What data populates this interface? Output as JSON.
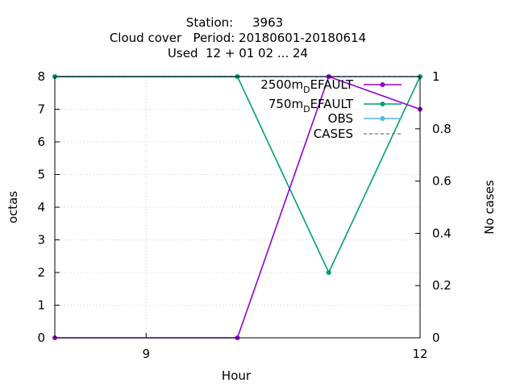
{
  "chart_data": {
    "type": "line",
    "title_lines": [
      "Station:     3963",
      "Cloud cover   Period: 20180601-20180614",
      "Used  12 + 01 02 ... 24"
    ],
    "xlabel": "Hour",
    "ylabel": "octas",
    "y2label": "No cases",
    "xlim": [
      8,
      12
    ],
    "ylim": [
      0,
      8
    ],
    "y2lim": [
      0,
      1
    ],
    "xticks": [
      {
        "value": 9,
        "label": "9"
      },
      {
        "value": 12,
        "label": "12"
      }
    ],
    "yticks": [
      {
        "value": 0,
        "label": "0"
      },
      {
        "value": 1,
        "label": "1"
      },
      {
        "value": 2,
        "label": "2"
      },
      {
        "value": 3,
        "label": "3"
      },
      {
        "value": 4,
        "label": "4"
      },
      {
        "value": 5,
        "label": "5"
      },
      {
        "value": 6,
        "label": "6"
      },
      {
        "value": 7,
        "label": "7"
      },
      {
        "value": 8,
        "label": "8"
      }
    ],
    "y2ticks": [
      {
        "value": 0,
        "label": "0"
      },
      {
        "value": 0.2,
        "label": "0.2"
      },
      {
        "value": 0.4,
        "label": "0.4"
      },
      {
        "value": 0.6,
        "label": "0.6"
      },
      {
        "value": 0.8,
        "label": "0.8"
      },
      {
        "value": 1,
        "label": "1"
      }
    ],
    "grid": true,
    "legend_position": "top-right",
    "series": [
      {
        "name": "2500m",
        "name_sub": "D",
        "name_rest": "EFAULT",
        "color": "#9400d3",
        "axis": "y",
        "dash": false,
        "x": [
          8,
          10,
          11,
          12
        ],
        "values": [
          0,
          0,
          8,
          7
        ]
      },
      {
        "name": "750m",
        "name_sub": "D",
        "name_rest": "EFAULT",
        "color": "#009e73",
        "axis": "y",
        "dash": false,
        "x": [
          8,
          10,
          11,
          12
        ],
        "values": [
          8,
          8,
          2,
          8
        ]
      },
      {
        "name": "OBS",
        "name_sub": "",
        "name_rest": "",
        "color": "#56b4e9",
        "axis": "y",
        "dash": false,
        "x": [
          8,
          10,
          11,
          12
        ],
        "values": [
          8,
          8,
          8,
          8
        ]
      },
      {
        "name": "CASES",
        "name_sub": "",
        "name_rest": "",
        "color": "#888888",
        "axis": "y2",
        "dash": true,
        "x": [
          8,
          10,
          11,
          12
        ],
        "values": [
          1,
          1,
          1,
          1
        ]
      }
    ]
  }
}
